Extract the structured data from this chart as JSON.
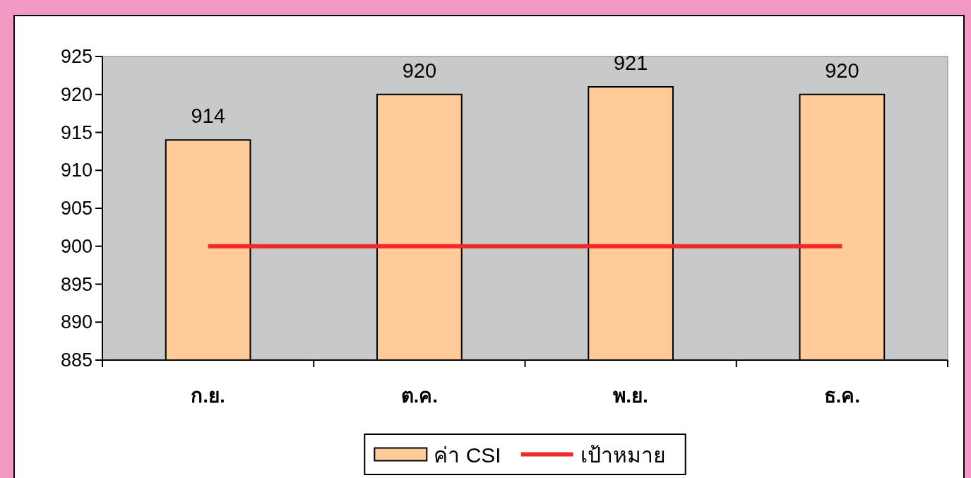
{
  "chart_data": {
    "type": "bar",
    "categories": [
      "ก.ย.",
      "ต.ค.",
      "พ.ย.",
      "ธ.ค."
    ],
    "series": [
      {
        "name": "ค่า CSI",
        "color": "#ffcc99",
        "values": [
          914,
          920,
          921,
          920
        ],
        "value_labels": [
          "914",
          "920",
          "921",
          "920"
        ]
      },
      {
        "name": "เป้าหมาย",
        "type": "line",
        "color": "#ee2a2a",
        "values": [
          900,
          900,
          900,
          900
        ]
      }
    ],
    "ylim": [
      885,
      925
    ],
    "yticks": [
      885,
      890,
      895,
      900,
      905,
      910,
      915,
      920,
      925
    ],
    "grid": false,
    "legend": "bottom"
  }
}
